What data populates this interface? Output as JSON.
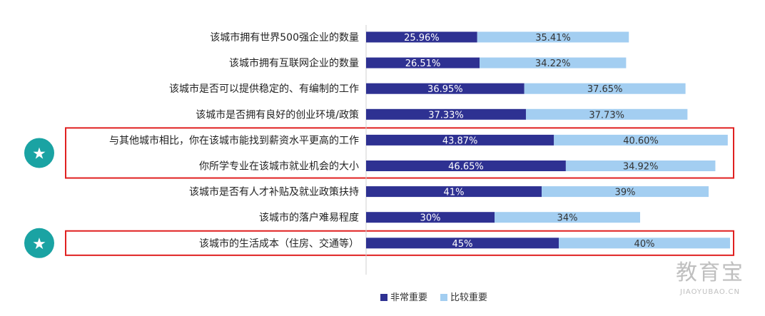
{
  "chart_data": {
    "type": "bar",
    "orientation": "horizontal",
    "stacked": true,
    "categories": [
      "该城市拥有世界500强企业的数量",
      "该城市拥有互联网企业的数量",
      "该城市是否可以提供稳定的、有编制的工作",
      "该城市是否拥有良好的创业环境/政策",
      "与其他城市相比，你在该城市能找到薪资水平更高的工作",
      "你所学专业在该城市就业机会的大小",
      "该城市是否有人才补贴及就业政策扶持",
      "该城市的落户难易程度",
      "该城市的生活成本（住房、交通等）"
    ],
    "series": [
      {
        "name": "非常重要",
        "color": "#2e3192",
        "values": [
          25.96,
          26.51,
          36.95,
          37.33,
          43.87,
          46.65,
          41,
          30,
          45
        ],
        "labels": [
          "25.96%",
          "26.51%",
          "36.95%",
          "37.33%",
          "43.87%",
          "46.65%",
          "41%",
          "30%",
          "45%"
        ]
      },
      {
        "name": "比较重要",
        "color": "#a3cef1",
        "values": [
          35.41,
          34.22,
          37.65,
          37.73,
          40.6,
          34.92,
          39,
          34,
          40
        ],
        "labels": [
          "35.41%",
          "34.22%",
          "37.65%",
          "37.73%",
          "40.60%",
          "34.92%",
          "39%",
          "34%",
          "40%"
        ]
      }
    ],
    "xlim": [
      0,
      85
    ],
    "grid": false,
    "legend_position": "bottom-center",
    "highlight_groups": [
      [
        4,
        5
      ],
      [
        8
      ]
    ],
    "highlight_color": "#e02020",
    "star_color": "#1aa3a3"
  },
  "watermark": {
    "main": "教育宝",
    "sub": "JIAOYUBAO.CN"
  }
}
